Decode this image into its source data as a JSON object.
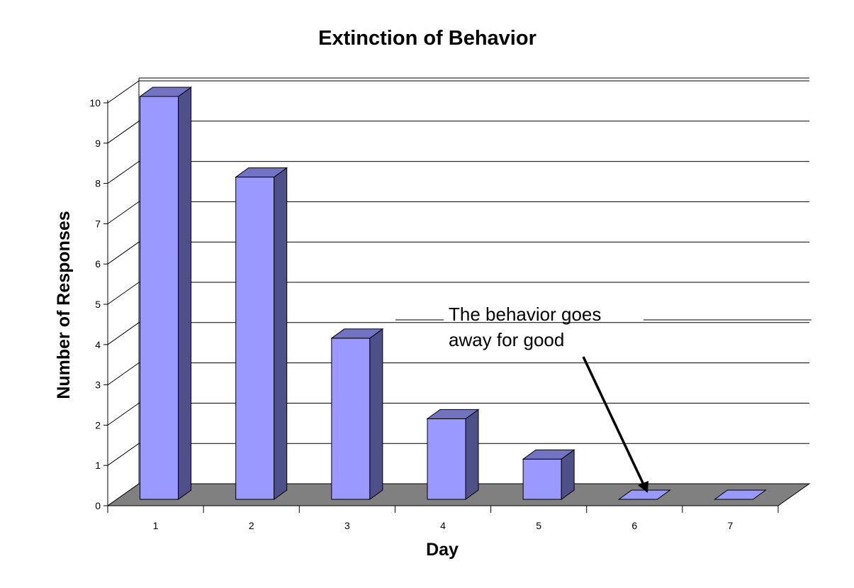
{
  "chart_data": {
    "type": "bar",
    "title": "Extinction of Behavior",
    "xlabel": "Day",
    "ylabel": "Number of Responses",
    "categories": [
      "1",
      "2",
      "3",
      "4",
      "5",
      "6",
      "7"
    ],
    "values": [
      10,
      8,
      4,
      2,
      1,
      0,
      0
    ],
    "ylim": [
      0,
      10
    ],
    "yticks": [
      "0",
      "1",
      "2",
      "3",
      "4",
      "5",
      "6",
      "7",
      "8",
      "9",
      "10"
    ],
    "grid": true,
    "legend": "none",
    "style": "3d-column",
    "annotation": {
      "lines": [
        "The behavior goes",
        "away for good"
      ],
      "points_to_category": "6"
    },
    "colors": {
      "bar_front": "#9999ff",
      "bar_side": "#4f4f8a",
      "bar_top": "#7373c4",
      "floor": "#808080"
    }
  }
}
